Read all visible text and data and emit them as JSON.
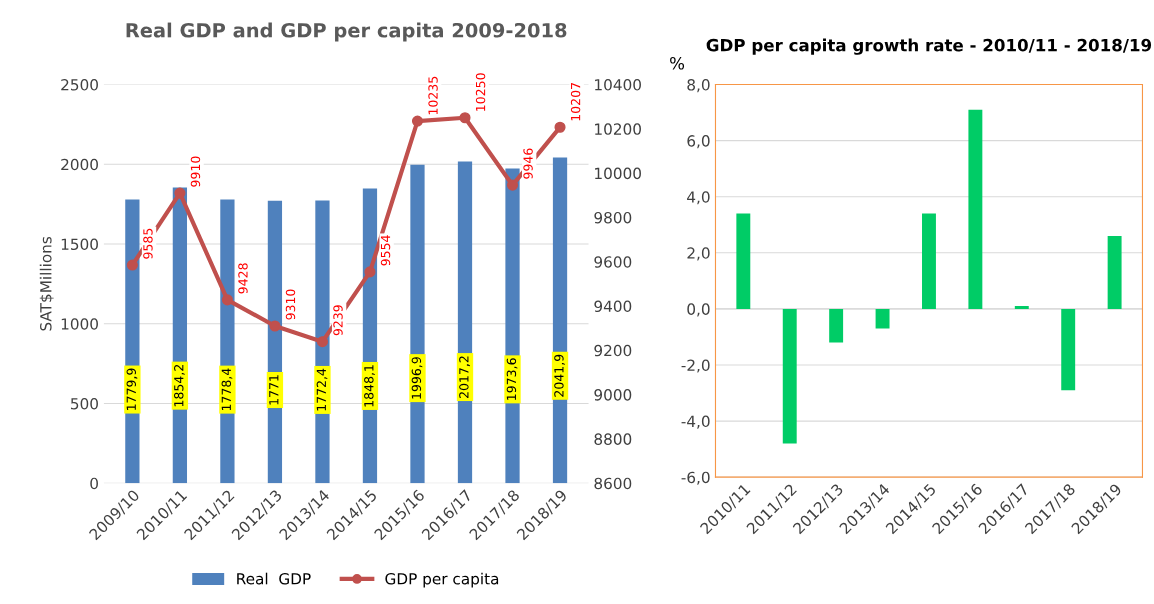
{
  "chart_data": [
    {
      "type": "bar",
      "title": "Real GDP and GDP per capita 2009-2018",
      "ylabel": "SAT$Millions",
      "categories": [
        "2009/10",
        "2010/11",
        "2011/12",
        "2012/13",
        "2013/14",
        "2014/15",
        "2015/16",
        "2016/17",
        "2017/18",
        "2018/19"
      ],
      "series": [
        {
          "name": "Real  GDP",
          "type": "bar",
          "color": "#4f81bd",
          "values": [
            1779.9,
            1854.2,
            1778.4,
            1771,
            1772.4,
            1848.1,
            1996.9,
            2017.2,
            1973.6,
            2041.9
          ],
          "value_labels": [
            "1779,9",
            "1854,2",
            "1778,4",
            "1771",
            "1772,4",
            "1848,1",
            "1996,9",
            "2017,2",
            "1973,6",
            "2041,9"
          ]
        },
        {
          "name": "GDP per capita",
          "type": "line",
          "axis": "y2",
          "color": "#c0504d",
          "marker": "circle",
          "values": [
            9585,
            9910,
            9428,
            9310,
            9239,
            9554,
            10235,
            10250,
            9946,
            10207
          ],
          "value_labels": [
            "9585",
            "9910",
            "9428",
            "9310",
            "9239",
            "9554",
            "10235",
            "10250",
            "9946",
            "10207"
          ]
        }
      ],
      "ylim": [
        0,
        2500
      ],
      "yticks": [
        0,
        500,
        1000,
        1500,
        2000,
        2500
      ],
      "y2lim": [
        8600,
        10400
      ],
      "y2ticks": [
        8600,
        8800,
        9000,
        9200,
        9400,
        9600,
        9800,
        10000,
        10200,
        10400
      ],
      "grid": "y",
      "legend": "bottom"
    },
    {
      "type": "bar",
      "title": "GDP per capita growth rate - 2010/11 - 2018/19",
      "ylabel": "%",
      "categories": [
        "2010/11",
        "2011/12",
        "2012/13",
        "2013/14",
        "2014/15",
        "2015/16",
        "2016/17",
        "2017/18",
        "2018/19"
      ],
      "values": [
        3.4,
        -4.8,
        -1.2,
        -0.7,
        3.4,
        7.1,
        0.1,
        -2.9,
        2.6
      ],
      "color": "#00cc66",
      "ylim": [
        -6,
        8
      ],
      "yticks": [
        {
          "value": -6,
          "label": "-6,0"
        },
        {
          "value": -4,
          "label": "-4,0"
        },
        {
          "value": -2,
          "label": "-2,0"
        },
        {
          "value": 0,
          "label": "0,0"
        },
        {
          "value": 2,
          "label": "2,0"
        },
        {
          "value": 4,
          "label": "4,0"
        },
        {
          "value": 6,
          "label": "6,0"
        },
        {
          "value": 8,
          "label": "8,0"
        }
      ],
      "grid": "y"
    }
  ]
}
